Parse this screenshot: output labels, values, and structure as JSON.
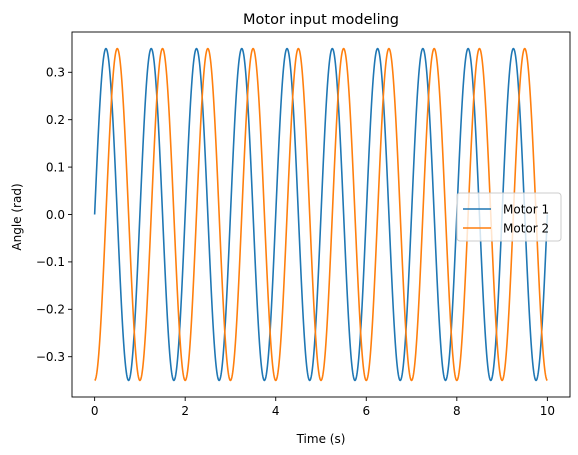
{
  "chart_data": {
    "type": "line",
    "title": "Motor input modeling",
    "xlabel": "Time (s)",
    "ylabel": "Angle (rad)",
    "xlim": [
      -0.5,
      10.5
    ],
    "ylim": [
      -0.385,
      0.385
    ],
    "x_ticks": [
      0,
      2,
      4,
      6,
      8,
      10
    ],
    "x_tick_labels": [
      "0",
      "2",
      "4",
      "6",
      "8",
      "10"
    ],
    "y_ticks": [
      -0.3,
      -0.2,
      -0.1,
      0.0,
      0.1,
      0.2,
      0.3
    ],
    "y_tick_labels": [
      "−0.3",
      "−0.2",
      "−0.1",
      "0.0",
      "0.1",
      "0.2",
      "0.3"
    ],
    "grid": false,
    "legend_position": "center-right",
    "x_range": [
      0,
      10
    ],
    "series": [
      {
        "name": "Motor 1",
        "color": "#1f77b4",
        "amplitude": 0.35,
        "frequency_hz": 1.0,
        "phase_rad": 0.0
      },
      {
        "name": "Motor 2",
        "color": "#ff7f0e",
        "amplitude": 0.35,
        "frequency_hz": 1.0,
        "phase_rad": -1.5708
      }
    ]
  }
}
